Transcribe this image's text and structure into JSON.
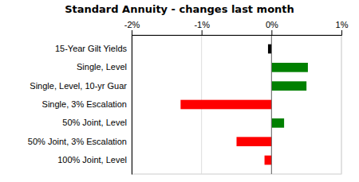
{
  "chart_data": {
    "type": "bar",
    "orientation": "horizontal",
    "title": "Standard Annuity - changes last month",
    "categories": [
      "15-Year Gilt Yields",
      "Single, Level",
      "Single, Level, 10-yr Guar",
      "Single, 3% Escalation",
      "50% Joint, Level",
      "50% Joint, 3% Escalation",
      "100% Joint, Level"
    ],
    "values": [
      -0.05,
      0.52,
      0.5,
      -1.3,
      0.18,
      -0.5,
      -0.1
    ],
    "colors": [
      "#000000",
      "#008000",
      "#008000",
      "#ff0000",
      "#008000",
      "#ff0000",
      "#ff0000"
    ],
    "xlim": [
      -2.0,
      1.0
    ],
    "xticks": [
      {
        "value": -2.0,
        "label": "-2%"
      },
      {
        "value": -1.0,
        "label": "-1%"
      },
      {
        "value": 0.0,
        "label": "0%"
      },
      {
        "value": 1.0,
        "label": "1%"
      }
    ],
    "grid": true
  }
}
